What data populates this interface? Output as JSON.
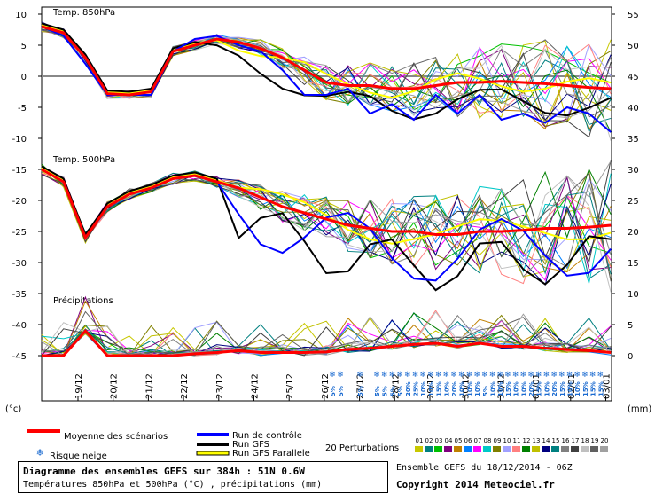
{
  "chart_data": {
    "type": "line",
    "x_labels": [
      "19/12",
      "20/12",
      "21/12",
      "22/12",
      "23/12",
      "24/12",
      "25/12",
      "26/12",
      "27/12",
      "28/12",
      "29/12",
      "30/12",
      "31/12",
      "01/01",
      "02/01",
      "03/01"
    ],
    "left_axis_unit": "(°c)",
    "right_axis_unit": "(mm)",
    "left_ticks": [
      10,
      5,
      0,
      -5,
      -10,
      -15,
      -20,
      -25,
      -30,
      -35,
      -40,
      -45
    ],
    "right_ticks": [
      55,
      50,
      45,
      40,
      35,
      30,
      25,
      20,
      15,
      10,
      5,
      0
    ],
    "panels": [
      {
        "title": "Temp. 850hPa",
        "ylim": [
          -11,
          10
        ],
        "mean": [
          8,
          7,
          3,
          -2.8,
          -3,
          -2.5,
          4,
          5,
          6,
          5.5,
          4.5,
          3,
          1,
          -1,
          -1.5,
          -1.5,
          -2,
          -2,
          -1.5,
          -1,
          -1,
          -0.8,
          -1,
          -1.2,
          -1.5,
          -1.8,
          -2
        ],
        "control": [
          8,
          6.5,
          2,
          -3,
          -3,
          -3,
          4,
          6,
          6.5,
          5,
          4,
          1,
          -3,
          -3,
          -2,
          -6,
          -4.5,
          -7,
          -3,
          -6,
          -3,
          -7,
          -6,
          -7.5,
          -5,
          -6,
          -9
        ]
      },
      {
        "title": "Temp. 500hPa",
        "ylim": [
          -46,
          -14
        ],
        "mean": [
          -15,
          -17,
          -26,
          -21,
          -19,
          -18,
          -16.5,
          -16,
          -17,
          -18,
          -19.5,
          -21,
          -22,
          -23,
          -24,
          -24.5,
          -25,
          -25,
          -25.5,
          -25.5,
          -25,
          -25,
          -24.8,
          -24.5,
          -24.5,
          -24.3,
          -24
        ]
      },
      {
        "title": "Précipitations",
        "ylim": [
          0,
          50
        ],
        "mean": [
          0,
          0,
          4,
          0,
          0,
          0,
          0,
          0.3,
          0.5,
          0.8,
          0.5,
          0.5,
          0.5,
          0.6,
          1,
          1.2,
          1.5,
          1.8,
          2,
          1.5,
          2,
          1.5,
          1.5,
          1.2,
          1,
          0.8,
          0.5
        ]
      }
    ],
    "snow_risk": [
      "5%",
      "5%",
      "5%",
      "5%",
      "5%",
      "5%",
      "5%",
      "20%",
      "25%",
      "10%",
      "10%",
      "15%",
      "10%",
      "20%",
      "10%",
      "10%",
      "10%",
      "5%",
      "10%",
      "10%",
      "15%",
      "10%",
      "10%",
      "20%",
      "15%",
      "10%",
      "20%",
      "15%",
      "10%",
      "10%",
      "15%",
      "15%",
      "15%"
    ]
  },
  "legend": {
    "mean": "Moyenne des scénarios",
    "control": "Run de contrôle",
    "gfs": "Run GFS",
    "gfs_par": "Run GFS Parallele",
    "snow": "Risque neige",
    "perturb": "20 Perturbations",
    "pert_numbers": [
      "01",
      "02",
      "03",
      "04",
      "05",
      "06",
      "07",
      "08",
      "09",
      "10",
      "11",
      "12",
      "13",
      "14",
      "15",
      "16",
      "17",
      "18",
      "19",
      "20"
    ],
    "pert_colors": [
      "#c8c800",
      "#008080",
      "#00c000",
      "#800080",
      "#c08000",
      "#0080ff",
      "#ff00ff",
      "#00c8c8",
      "#808000",
      "#a0a0ff",
      "#ff8080",
      "#008000",
      "#c0c000",
      "#000080",
      "#008080",
      "#808080",
      "#404040",
      "#c0c0c0",
      "#606060",
      "#a0a0a0"
    ],
    "colors": {
      "mean": "#ff0000",
      "control": "#0000ff",
      "gfs": "#000000",
      "gfs_par": "#ffff00",
      "snow": "#1a6ad0"
    }
  },
  "info": {
    "line1": "Diagramme des ensembles GEFS sur 384h : 51N 0.6W",
    "line2": "Températures 850hPa et 500hPa (°C) , précipitations (mm)",
    "ensemble": "Ensemble GEFS du 18/12/2014 - 06Z",
    "copyright": "Copyright 2014 Meteociel.fr"
  }
}
